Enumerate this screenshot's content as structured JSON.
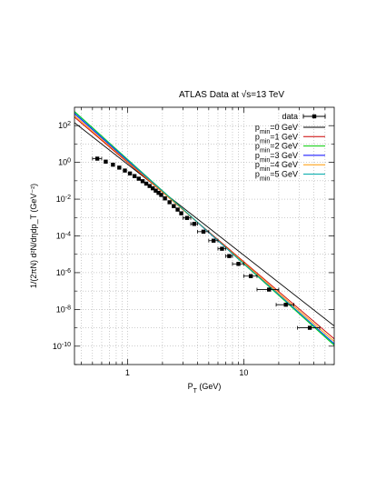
{
  "chart_data": {
    "type": "scatter",
    "title": "ATLAS Data at √s=13 TeV",
    "xlabel": "P_T (GeV)",
    "ylabel": "1/(2πN) d²N/dηdp_T (GeV⁻²)",
    "xscale": "log",
    "yscale": "log",
    "xlim": [
      0.35,
      60
    ],
    "ylim": [
      1e-11,
      1000
    ],
    "x_tick_labels": [
      "1",
      "10"
    ],
    "y_tick_labels": [
      "10^2",
      "10^0",
      "10^-2",
      "10^-4",
      "10^-6",
      "10^-8",
      "10^-10"
    ],
    "grid": true,
    "legend_position": "top-right",
    "data_series": {
      "name": "data",
      "color": "#000000",
      "points": [
        {
          "x": 0.55,
          "y": 1.6,
          "xerr": 0.05
        },
        {
          "x": 0.65,
          "y": 1.1
        },
        {
          "x": 0.75,
          "y": 0.75
        },
        {
          "x": 0.85,
          "y": 0.52
        },
        {
          "x": 0.95,
          "y": 0.36
        },
        {
          "x": 1.05,
          "y": 0.25
        },
        {
          "x": 1.15,
          "y": 0.18
        },
        {
          "x": 1.25,
          "y": 0.13
        },
        {
          "x": 1.35,
          "y": 0.095
        },
        {
          "x": 1.45,
          "y": 0.07
        },
        {
          "x": 1.55,
          "y": 0.052
        },
        {
          "x": 1.65,
          "y": 0.039
        },
        {
          "x": 1.75,
          "y": 0.029
        },
        {
          "x": 1.85,
          "y": 0.022
        },
        {
          "x": 1.95,
          "y": 0.017
        },
        {
          "x": 2.1,
          "y": 0.011
        },
        {
          "x": 2.3,
          "y": 0.0068
        },
        {
          "x": 2.5,
          "y": 0.0042
        },
        {
          "x": 2.7,
          "y": 0.0027
        },
        {
          "x": 2.9,
          "y": 0.0017
        },
        {
          "x": 3.25,
          "y": 0.00095,
          "xerr": 0.25
        },
        {
          "x": 3.75,
          "y": 0.00045,
          "xerr": 0.25
        },
        {
          "x": 4.5,
          "y": 0.00017,
          "xerr": 0.5
        },
        {
          "x": 5.5,
          "y": 5.5e-05,
          "xerr": 0.5
        },
        {
          "x": 6.5,
          "y": 2e-05,
          "xerr": 0.5
        },
        {
          "x": 7.5,
          "y": 8e-06,
          "xerr": 0.5
        },
        {
          "x": 9.0,
          "y": 3e-06,
          "xerr": 1.0
        },
        {
          "x": 11.5,
          "y": 6.5e-07,
          "xerr": 1.5
        },
        {
          "x": 16.5,
          "y": 1.2e-07,
          "xerr": 3.5
        },
        {
          "x": 23.0,
          "y": 1.8e-08,
          "xerr": 4.0
        },
        {
          "x": 37.0,
          "y": 1e-09,
          "xerr": 8.0
        }
      ]
    },
    "series": [
      {
        "name": "p_min=0 GeV",
        "color": "#000000",
        "y_at_x1": 0.8,
        "slope": -4.95
      },
      {
        "name": "p_min=1 GeV",
        "color": "#cc0000",
        "y_at_x1": 1.0,
        "slope": -5.4
      },
      {
        "name": "p_min=2 GeV",
        "color": "#00cc00",
        "y_at_x1": 1.5,
        "slope": -5.7
      },
      {
        "name": "p_min=3 GeV",
        "color": "#0000ff",
        "y_at_x1": 1.25,
        "slope": -5.6
      },
      {
        "name": "p_min=4 GeV",
        "color": "#ff9900",
        "y_at_x1": 1.1,
        "slope": -5.5
      },
      {
        "name": "p_min=5 GeV",
        "color": "#00aaaa",
        "y_at_x1": 1.4,
        "slope": -5.65
      }
    ]
  }
}
